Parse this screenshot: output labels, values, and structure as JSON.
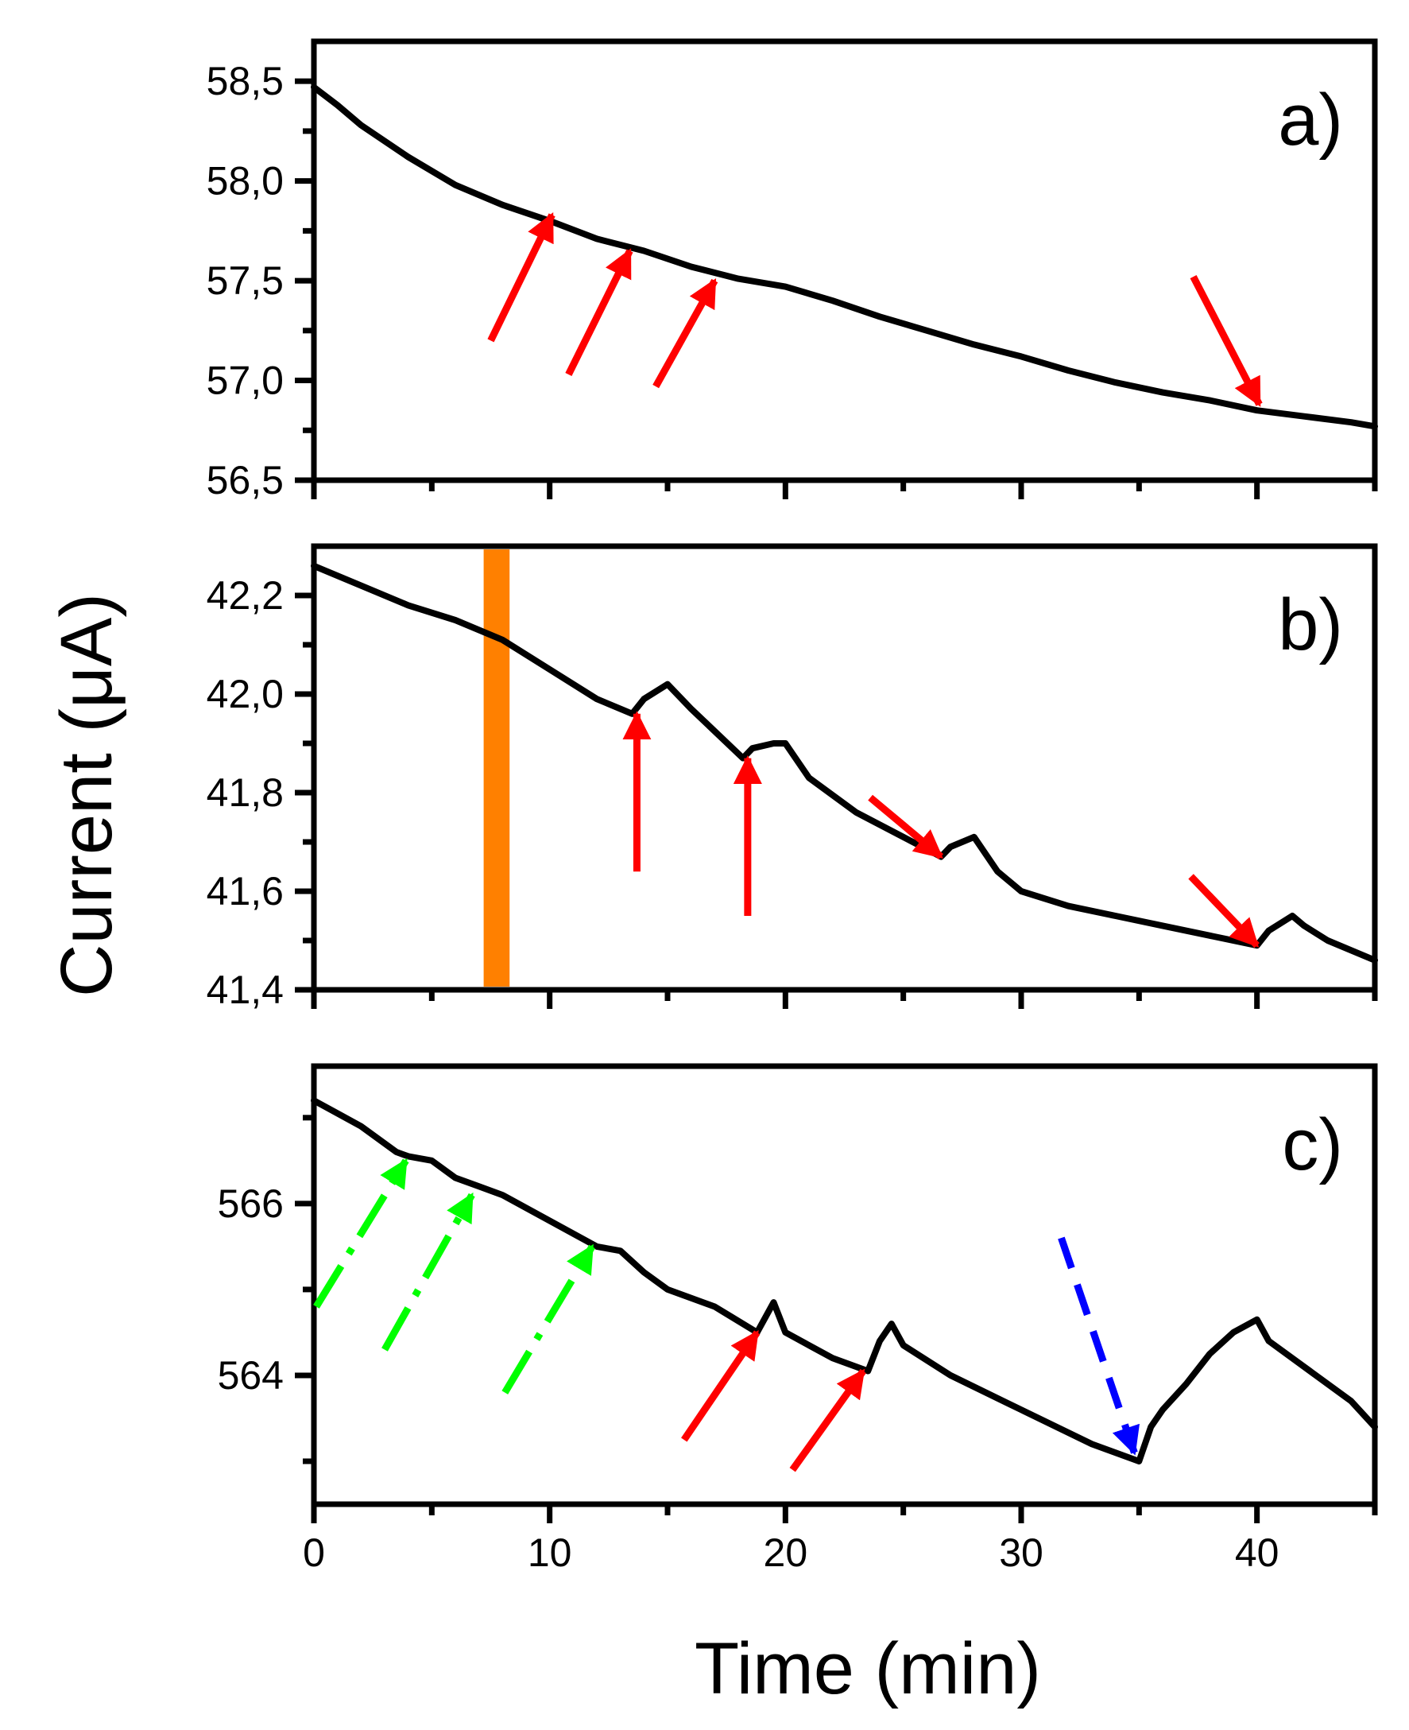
{
  "chart_data": {
    "type": "line",
    "x_axis": {
      "label": "Time (min)",
      "range": [
        0,
        45
      ],
      "ticks": [
        0,
        10,
        20,
        30,
        40
      ],
      "tick_labels": [
        "0",
        "10",
        "20",
        "30",
        "40"
      ]
    },
    "y_axis_label": "Current (μA)",
    "line_color": "#000000",
    "panels": [
      {
        "id": "a",
        "label": "a)",
        "ylim": [
          56.5,
          58.7
        ],
        "yticks": [
          56.5,
          57.0,
          57.5,
          58.0,
          58.5
        ],
        "ytick_labels": [
          "56,5",
          "57,0",
          "57,5",
          "58,0",
          "58,5"
        ],
        "series": {
          "x": [
            0,
            1,
            2,
            4,
            6,
            8,
            10,
            12,
            14,
            16,
            18,
            20,
            22,
            24,
            26,
            28,
            30,
            32,
            34,
            36,
            38,
            40,
            42,
            44,
            45
          ],
          "y": [
            58.47,
            58.38,
            58.28,
            58.12,
            57.98,
            57.88,
            57.8,
            57.71,
            57.65,
            57.57,
            57.51,
            57.47,
            57.4,
            57.32,
            57.25,
            57.18,
            57.12,
            57.05,
            56.99,
            56.94,
            56.9,
            56.85,
            56.82,
            56.79,
            56.77
          ]
        },
        "annotations": [
          {
            "color": "#ff0000",
            "style": "solid",
            "from": [
              7.5,
              57.2
            ],
            "to": [
              10.1,
              57.83
            ]
          },
          {
            "color": "#ff0000",
            "style": "solid",
            "from": [
              10.8,
              57.03
            ],
            "to": [
              13.4,
              57.65
            ]
          },
          {
            "color": "#ff0000",
            "style": "solid",
            "from": [
              14.5,
              56.97
            ],
            "to": [
              17.0,
              57.5
            ]
          },
          {
            "color": "#ff0000",
            "style": "solid",
            "from": [
              37.3,
              57.52
            ],
            "to": [
              40.1,
              56.88
            ]
          }
        ]
      },
      {
        "id": "b",
        "label": "b)",
        "ylim": [
          41.4,
          42.3
        ],
        "yticks": [
          41.4,
          41.6,
          41.8,
          42.0,
          42.2
        ],
        "minor_yticks": [
          41.5,
          41.7,
          41.9,
          42.1
        ],
        "ytick_labels": [
          "41,4",
          "41,6",
          "41,8",
          "42,0",
          "42,2"
        ],
        "highlight_band": {
          "x_range": [
            7.2,
            8.3
          ],
          "color": "#ff8000"
        },
        "series": {
          "x": [
            0,
            2,
            4,
            6,
            8,
            10,
            12,
            13.5,
            14,
            15,
            16,
            18.2,
            18.6,
            19.5,
            20,
            21,
            23,
            25,
            26.6,
            27,
            28,
            29,
            30,
            32,
            34,
            36,
            38,
            40,
            40.5,
            41.5,
            42,
            43,
            45
          ],
          "y": [
            42.26,
            42.22,
            42.18,
            42.15,
            42.11,
            42.05,
            41.99,
            41.96,
            41.99,
            42.02,
            41.97,
            41.87,
            41.89,
            41.9,
            41.9,
            41.83,
            41.76,
            41.71,
            41.67,
            41.69,
            41.71,
            41.64,
            41.6,
            41.57,
            41.55,
            41.53,
            41.51,
            41.49,
            41.52,
            41.55,
            41.53,
            41.5,
            41.46
          ]
        },
        "annotations": [
          {
            "color": "#ff0000",
            "style": "solid",
            "from": [
              13.7,
              41.64
            ],
            "to": [
              13.7,
              41.96
            ]
          },
          {
            "color": "#ff0000",
            "style": "solid",
            "from": [
              18.4,
              41.55
            ],
            "to": [
              18.4,
              41.87
            ]
          },
          {
            "color": "#ff0000",
            "style": "solid",
            "from": [
              23.6,
              41.79
            ],
            "to": [
              26.6,
              41.67
            ]
          },
          {
            "color": "#ff0000",
            "style": "solid",
            "from": [
              37.2,
              41.63
            ],
            "to": [
              40.0,
              41.49
            ]
          }
        ]
      },
      {
        "id": "c",
        "label": "c)",
        "ylim": [
          562.5,
          567.6
        ],
        "yticks": [
          564,
          566
        ],
        "minor_yticks": [
          563,
          565,
          567
        ],
        "ytick_labels": [
          "564",
          "566"
        ],
        "series": {
          "x": [
            0,
            2,
            3.5,
            4,
            5,
            6,
            7,
            8,
            10,
            12,
            13,
            14,
            15,
            17,
            18.8,
            19.5,
            20,
            22,
            23.5,
            24,
            24.5,
            25,
            27,
            30,
            33,
            35,
            35.5,
            36,
            37,
            38,
            39,
            40,
            40.5,
            42,
            44,
            45
          ],
          "y": [
            567.2,
            566.9,
            566.6,
            566.55,
            566.5,
            566.3,
            566.2,
            566.1,
            565.8,
            565.5,
            565.45,
            565.2,
            565.0,
            564.8,
            564.5,
            564.85,
            564.5,
            564.2,
            564.05,
            564.4,
            564.6,
            564.35,
            564.0,
            563.6,
            563.2,
            563.0,
            563.4,
            563.6,
            563.9,
            564.25,
            564.5,
            564.65,
            564.4,
            564.1,
            563.7,
            563.4
          ]
        },
        "annotations": [
          {
            "color": "#00ff00",
            "style": "dashdot",
            "from": [
              0.1,
              564.8
            ],
            "to": [
              3.9,
              566.5
            ]
          },
          {
            "color": "#00ff00",
            "style": "dashdot",
            "from": [
              3.0,
              564.3
            ],
            "to": [
              6.7,
              566.1
            ]
          },
          {
            "color": "#00ff00",
            "style": "dashdot",
            "from": [
              8.1,
              563.8
            ],
            "to": [
              11.8,
              565.5
            ]
          },
          {
            "color": "#ff0000",
            "style": "solid",
            "from": [
              15.7,
              563.25
            ],
            "to": [
              18.8,
              564.5
            ]
          },
          {
            "color": "#ff0000",
            "style": "solid",
            "from": [
              20.3,
              562.9
            ],
            "to": [
              23.3,
              564.05
            ]
          },
          {
            "color": "#0000ff",
            "style": "dashed",
            "from": [
              31.7,
              565.6
            ],
            "to": [
              34.8,
              563.1
            ]
          }
        ]
      }
    ]
  }
}
